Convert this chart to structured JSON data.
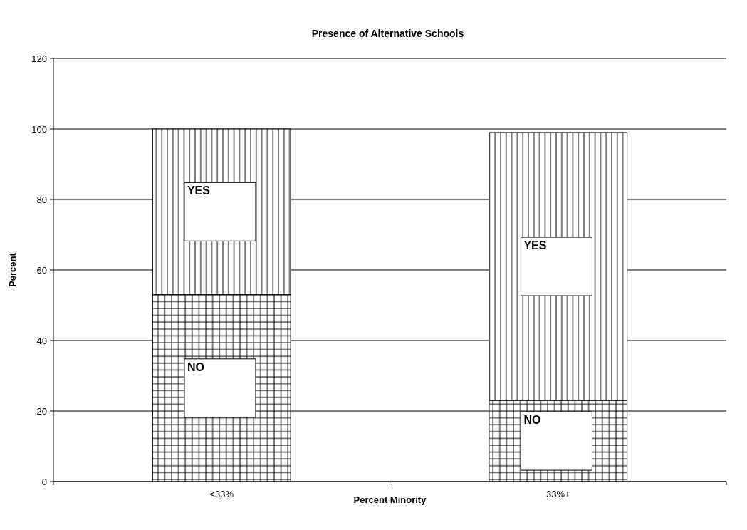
{
  "chart_data": {
    "type": "bar",
    "title": "Presence of Alternative Schools",
    "xlabel": "Percent Minority",
    "ylabel": "Percent",
    "categories": [
      "<33%",
      "33%+"
    ],
    "stacked": true,
    "series": [
      {
        "name": "NO",
        "color": "#000000",
        "values": [
          53,
          23
        ]
      },
      {
        "name": "YES",
        "color": "#000000",
        "values": [
          47,
          76
        ]
      }
    ],
    "ylim": [
      0,
      120
    ],
    "yticks": [
      0,
      20,
      40,
      60,
      80,
      100,
      120
    ],
    "grid": "y"
  }
}
